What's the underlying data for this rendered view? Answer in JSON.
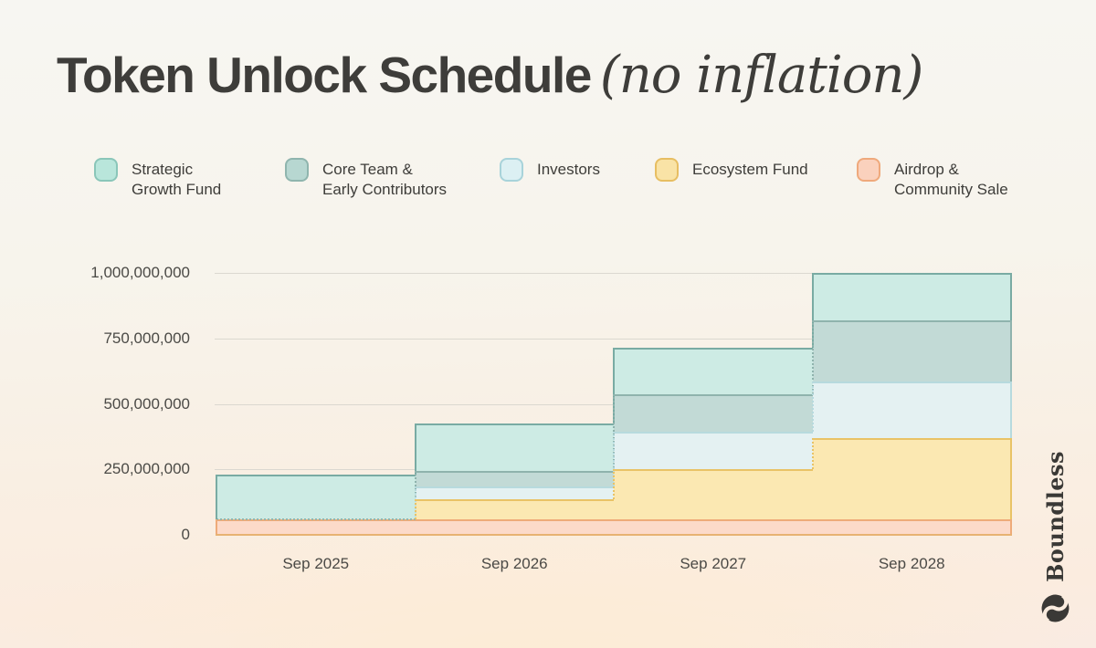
{
  "title": {
    "main": "Token Unlock Schedule",
    "suffix": "(no inflation)"
  },
  "brand": {
    "name": "Boundless",
    "icon": "boundless-swirl-icon"
  },
  "colors": {
    "background_top": "#f7f6f2",
    "background_bottom": "#fbecdf",
    "title_text": "#3e3d3a",
    "axis_text": "#4b4a46",
    "gridline": "#dbd8d0",
    "baseline_axis": "#e7b272",
    "zero_dotted_edge": "#93b7af"
  },
  "chart_data": {
    "type": "area",
    "subtype": "stacked-step",
    "title": "Token Unlock Schedule (no inflation)",
    "xlabel": "",
    "ylabel": "",
    "categories": [
      "Sep 2025",
      "Sep 2026",
      "Sep 2027",
      "Sep 2028"
    ],
    "ylim": [
      0,
      1000000000
    ],
    "grid": "horizontal",
    "legend_position": "top",
    "y_ticks": [
      {
        "value": 0,
        "label": "0"
      },
      {
        "value": 250000000,
        "label": "250,000,000"
      },
      {
        "value": 500000000,
        "label": "500,000,000"
      },
      {
        "value": 750000000,
        "label": "750,000,000"
      },
      {
        "value": 1000000000,
        "label": "1,000,000,000"
      }
    ],
    "series": [
      {
        "id": "airdrop",
        "name": "Airdrop & Community Sale",
        "values": [
          60000000,
          60000000,
          60000000,
          60000000
        ],
        "fill": "#fcdac9",
        "stroke": "#eeab79"
      },
      {
        "id": "ecosystem",
        "name": "Ecosystem Fund",
        "values": [
          0,
          75000000,
          190000000,
          310000000
        ],
        "fill": "#fbe8b2",
        "stroke": "#e9c366"
      },
      {
        "id": "investors",
        "name": "Investors",
        "values": [
          0,
          50000000,
          145000000,
          215000000
        ],
        "fill": "#e4f1f2",
        "stroke": "#b7dade"
      },
      {
        "id": "core",
        "name": "Core Team & Early Contributors",
        "values": [
          0,
          60000000,
          140000000,
          235000000
        ],
        "fill": "#c2dad6",
        "stroke": "#8fb3ad"
      },
      {
        "id": "strategic",
        "name": "Strategic Growth Fund",
        "values": [
          170000000,
          180000000,
          180000000,
          180000000
        ],
        "fill": "#cdebe4",
        "stroke": "#79aba3"
      }
    ],
    "legend": [
      {
        "series": "strategic",
        "lines": [
          "Strategic",
          "Growth Fund"
        ],
        "swatch_fill": "#b9e6db",
        "swatch_stroke": "#8ac6b9"
      },
      {
        "series": "core",
        "lines": [
          "Core Team &",
          "Early Contributors"
        ],
        "swatch_fill": "#b7d7d1",
        "swatch_stroke": "#8fb5ae"
      },
      {
        "series": "investors",
        "lines": [
          "Investors"
        ],
        "swatch_fill": "#dcf0f3",
        "swatch_stroke": "#a8d3da"
      },
      {
        "series": "ecosystem",
        "lines": [
          "Ecosystem Fund"
        ],
        "swatch_fill": "#f9e3a6",
        "swatch_stroke": "#e7be62"
      },
      {
        "series": "airdrop",
        "lines": [
          "Airdrop &",
          "Community Sale"
        ],
        "swatch_fill": "#fad1bd",
        "swatch_stroke": "#efa97c"
      }
    ]
  }
}
